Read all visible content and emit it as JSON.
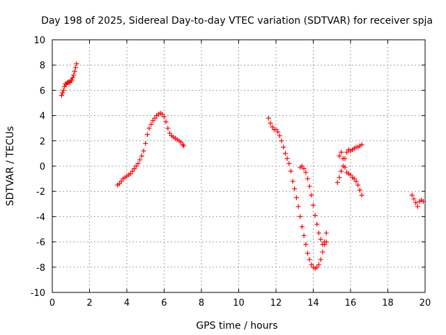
{
  "chart_data": {
    "type": "scatter",
    "title": "Day 198 of 2025, Sidereal Day-to-day VTEC variation (SDTVAR) for receiver spja",
    "xlabel": "GPS time / hours",
    "ylabel": "SDTVAR / TECUs",
    "xlim": [
      0,
      20
    ],
    "ylim": [
      -10,
      10
    ],
    "xticks": [
      "0",
      "2",
      "4",
      "6",
      "8",
      "10",
      "12",
      "14",
      "16",
      "18",
      "20"
    ],
    "yticks": [
      "10",
      "8",
      "6",
      "4",
      "2",
      "0",
      "-2",
      "-4",
      "-6",
      "-8",
      "-10"
    ],
    "grid": true,
    "marker": "+",
    "color": "#ff0000",
    "series": [
      {
        "name": "SDTVAR",
        "x": [
          0.5,
          0.55,
          0.6,
          0.65,
          0.7,
          0.75,
          0.8,
          0.85,
          0.9,
          0.95,
          1.0,
          1.05,
          1.1,
          1.15,
          1.2,
          1.25,
          1.3,
          3.5,
          3.6,
          3.7,
          3.8,
          3.9,
          4.0,
          4.1,
          4.2,
          4.3,
          4.4,
          4.5,
          4.6,
          4.7,
          4.8,
          4.9,
          5.0,
          5.1,
          5.2,
          5.3,
          5.4,
          5.5,
          5.6,
          5.7,
          5.8,
          5.9,
          6.0,
          6.1,
          6.2,
          6.3,
          6.4,
          6.5,
          6.6,
          6.7,
          6.8,
          6.9,
          7.0,
          7.05,
          11.6,
          11.7,
          11.8,
          11.9,
          12.0,
          12.1,
          12.2,
          12.3,
          12.4,
          12.5,
          12.6,
          12.7,
          12.8,
          12.9,
          13.0,
          13.1,
          13.2,
          13.3,
          13.4,
          13.5,
          13.6,
          13.7,
          13.8,
          13.9,
          14.0,
          14.1,
          14.2,
          14.3,
          14.4,
          14.5,
          14.6,
          14.7,
          13.3,
          13.4,
          13.5,
          13.6,
          13.7,
          13.8,
          13.9,
          14.0,
          14.1,
          14.2,
          14.3,
          14.4,
          14.5,
          14.6,
          14.7,
          15.3,
          15.4,
          15.5,
          15.6,
          15.7,
          15.8,
          15.9,
          16.0,
          16.1,
          16.2,
          16.3,
          16.4,
          16.5,
          16.6,
          15.4,
          15.5,
          15.6,
          15.7,
          15.8,
          15.9,
          16.0,
          16.1,
          16.2,
          16.3,
          16.4,
          16.5,
          16.6,
          19.3,
          19.4,
          19.5,
          19.6,
          19.7,
          19.8,
          19.9
        ],
        "y": [
          5.6,
          5.8,
          6.0,
          6.3,
          6.5,
          6.5,
          6.6,
          6.6,
          6.7,
          6.6,
          6.8,
          6.8,
          7.0,
          7.2,
          7.5,
          7.8,
          8.1,
          -1.5,
          -1.4,
          -1.2,
          -1.0,
          -0.9,
          -0.8,
          -0.7,
          -0.6,
          -0.4,
          -0.2,
          0.0,
          0.2,
          0.5,
          0.8,
          1.2,
          1.8,
          2.5,
          3.0,
          3.3,
          3.6,
          3.8,
          4.0,
          4.1,
          4.2,
          4.1,
          3.9,
          3.5,
          3.0,
          2.6,
          2.4,
          2.3,
          2.2,
          2.1,
          2.0,
          1.9,
          1.7,
          1.6,
          3.8,
          3.4,
          3.1,
          2.9,
          2.9,
          2.7,
          2.4,
          2.0,
          1.5,
          1.0,
          0.6,
          0.2,
          -0.4,
          -1.2,
          -1.8,
          -2.5,
          -3.2,
          -4.0,
          -4.8,
          -5.5,
          -6.2,
          -6.9,
          -7.4,
          -7.8,
          -8.0,
          -8.1,
          -8.0,
          -7.8,
          -7.4,
          -6.8,
          -6.0,
          -5.3,
          -0.1,
          0.0,
          -0.2,
          -0.5,
          -1.0,
          -1.6,
          -2.3,
          -3.1,
          -3.9,
          -4.6,
          -5.3,
          -5.8,
          -6.2,
          -6.2,
          -6.0,
          -1.3,
          -0.9,
          -0.4,
          0.0,
          0.6,
          1.1,
          1.3,
          1.2,
          1.3,
          1.4,
          1.5,
          1.5,
          1.6,
          1.7,
          0.8,
          1.1,
          0.6,
          -0.1,
          -0.5,
          -0.6,
          -0.7,
          -0.9,
          -1.0,
          -1.2,
          -1.5,
          -1.9,
          -2.3,
          -2.3,
          -2.6,
          -2.9,
          -3.2,
          -2.8,
          -2.7,
          -2.8
        ]
      }
    ]
  }
}
